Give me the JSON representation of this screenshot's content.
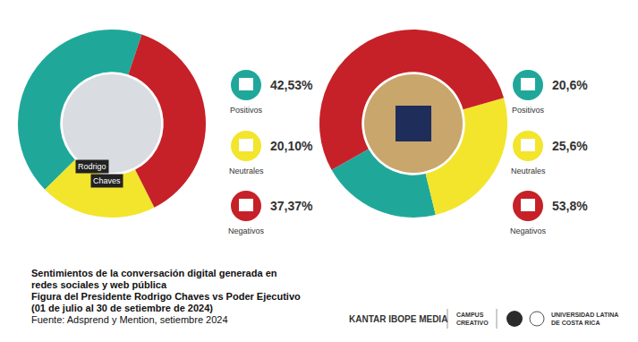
{
  "chart_data": [
    {
      "type": "pie",
      "categories": [
        "Positivos",
        "Neutrales",
        "Negativos"
      ],
      "values": [
        42.53,
        20.1,
        37.37
      ],
      "value_labels": [
        "42,53%",
        "20,10%",
        "37,37%"
      ],
      "colors": [
        "#1fa89a",
        "#f2e52c",
        "#c62128"
      ],
      "data_labels": true,
      "annotations": [
        "Rodrigo",
        "Chaves"
      ]
    },
    {
      "type": "pie",
      "categories": [
        "Positivos",
        "Neutrales",
        "Negativos"
      ],
      "values": [
        20.6,
        25.6,
        53.8
      ],
      "value_labels": [
        "20,6%",
        "25,6%",
        "53,8%"
      ],
      "colors": [
        "#1fa89a",
        "#f2e52c",
        "#c62128"
      ],
      "data_labels": true
    }
  ],
  "caption": [
    "Sentimientos de la conversación digital generada en",
    "redes sociales y web pública",
    "Figura del Presidente Rodrigo Chaves vs Poder Ejecutivo",
    "(01 de julio al 30 de setiembre de 2024)"
  ],
  "source": "Fuente: Adsprend y Mention, setiembre 2024",
  "logos": [
    [
      "KANTAR IBOPE MEDIA"
    ],
    [
      "CAMPUS",
      "CREATIVO"
    ],
    [
      "UNIVERSIDAD LATINA",
      "DE COSTA RICA"
    ]
  ]
}
